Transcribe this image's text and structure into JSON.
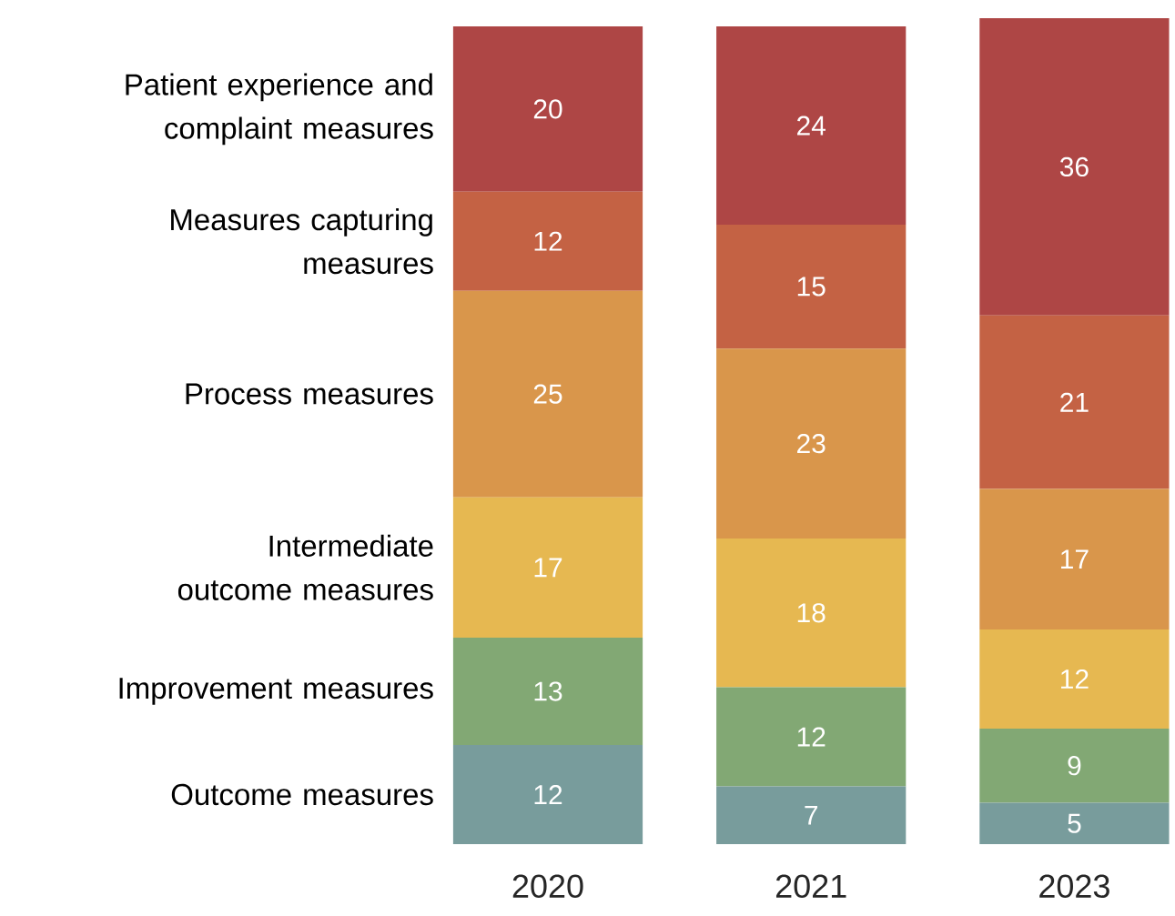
{
  "chart_data": {
    "type": "bar",
    "stacked": true,
    "data_labels": true,
    "tick_labels": "x",
    "categories": [
      "2020",
      "2021",
      "2023"
    ],
    "series": [
      {
        "name": "Outcome measures",
        "color": "#789c9c",
        "values": [
          12,
          7,
          5
        ]
      },
      {
        "name": "Improvement measures",
        "color": "#82a874",
        "values": [
          13,
          12,
          9
        ]
      },
      {
        "name": "Intermediate outcome measures",
        "color": "#e6b851",
        "values": [
          17,
          18,
          12
        ]
      },
      {
        "name": "Process measures",
        "color": "#d9964b",
        "values": [
          25,
          23,
          17
        ]
      },
      {
        "name": "Measures capturing measures",
        "color": "#c46244",
        "values": [
          12,
          15,
          21
        ]
      },
      {
        "name": "Patient experience and complaint measures",
        "color": "#ae4645",
        "values": [
          20,
          24,
          36
        ]
      }
    ]
  }
}
